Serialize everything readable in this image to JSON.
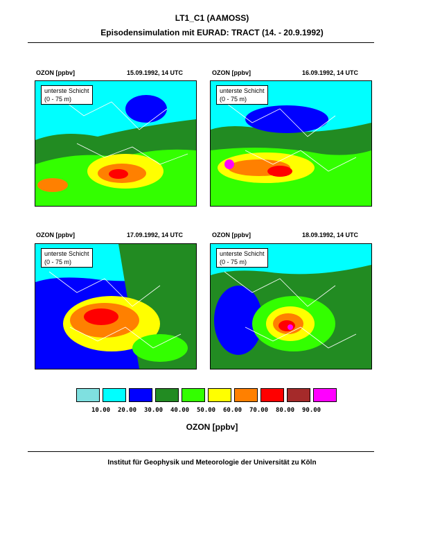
{
  "header": {
    "title": "LT1_C1 (AAMOSS)",
    "subtitle": "Episodensimulation mit EURAD: TRACT (14. - 20.9.1992)"
  },
  "panels": [
    {
      "variable": "OZON [ppbv]",
      "datetime": "15.09.1992, 14 UTC",
      "layer_label": "unterste Schicht",
      "layer_range": "(0 - 75 m)"
    },
    {
      "variable": "OZON [ppbv]",
      "datetime": "16.09.1992, 14 UTC",
      "layer_label": "unterste Schicht",
      "layer_range": "(0 - 75 m)"
    },
    {
      "variable": "OZON [ppbv]",
      "datetime": "17.09.1992, 14 UTC",
      "layer_label": "unterste Schicht",
      "layer_range": "(0 - 75 m)"
    },
    {
      "variable": "OZON [ppbv]",
      "datetime": "18.09.1992, 14 UTC",
      "layer_label": "unterste Schicht",
      "layer_range": "(0 - 75 m)"
    }
  ],
  "colorbar": {
    "colors": [
      "#7fe0e0",
      "#00ffff",
      "#0000ff",
      "#228b22",
      "#33ff00",
      "#ffff00",
      "#ff8000",
      "#ff0000",
      "#a52a2a",
      "#ff00ff"
    ],
    "ticks": [
      "10.00",
      "20.00",
      "30.00",
      "40.00",
      "50.00",
      "60.00",
      "70.00",
      "80.00",
      "90.00"
    ],
    "label": "OZON [ppbv]"
  },
  "footer": "Institut für Geophysik und Meteorologie der Universität zu Köln"
}
